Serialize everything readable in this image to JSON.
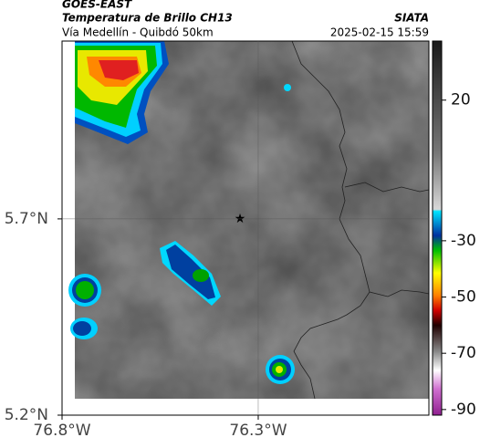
{
  "header": {
    "product": "GOES-EAST",
    "title": "Temperatura de Brillo CH13",
    "subtitle": "Vía Medellín - Quibdó 50km",
    "source": "SIATA",
    "datetime": "2025-02-15 15:59"
  },
  "map": {
    "xlim": [
      -76.8,
      -75.865
    ],
    "ylim": [
      5.2,
      6.153
    ],
    "xticks": [
      {
        "value": -76.8,
        "label": "76.8°W"
      },
      {
        "value": -76.3,
        "label": "76.3°W"
      }
    ],
    "yticks": [
      {
        "value": 5.7,
        "label": "5.7°N"
      },
      {
        "value": 5.2,
        "label": "5.2°N"
      }
    ],
    "grid": true,
    "colorbar": {
      "range": [
        -92,
        41
      ],
      "ticks": [
        20,
        -30,
        -50,
        -70,
        -90
      ]
    }
  }
}
